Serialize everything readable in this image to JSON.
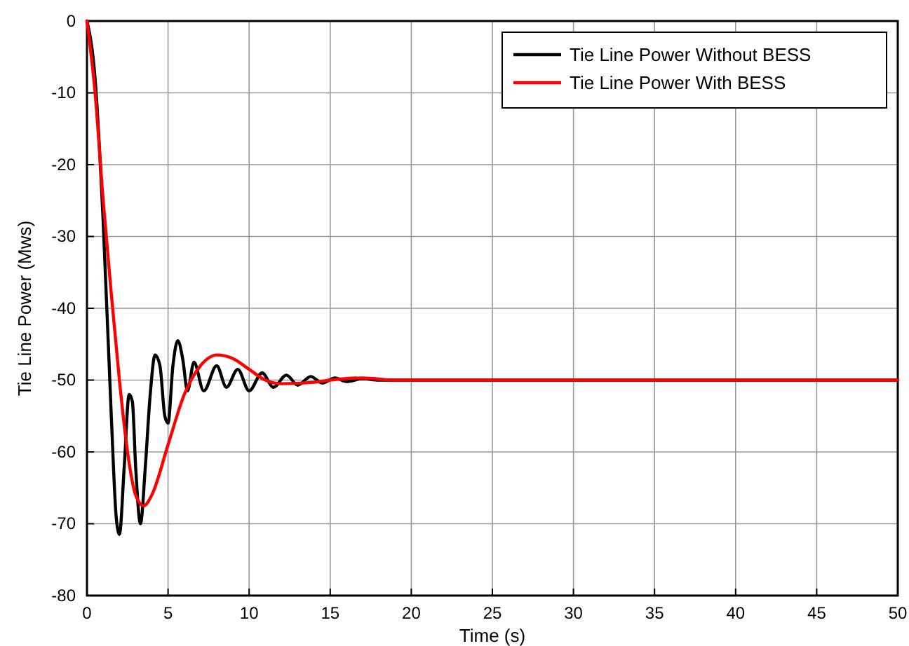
{
  "chart_data": {
    "type": "line",
    "xlabel": "Time (s)",
    "ylabel": "Tie Line Power (Mws)",
    "xlim": [
      0,
      50
    ],
    "ylim": [
      -80,
      0
    ],
    "xticks": [
      0,
      5,
      10,
      15,
      20,
      25,
      30,
      35,
      40,
      45,
      50
    ],
    "yticks": [
      -80,
      -70,
      -60,
      -50,
      -40,
      -30,
      -20,
      -10,
      0
    ],
    "grid": true,
    "legend": "top right",
    "line_style": "solid",
    "marker": "none",
    "series": [
      {
        "name": "Tie Line Power Without BESS",
        "color": "#000000",
        "x": [
          0,
          0.5,
          1,
          1.5,
          1.8,
          2,
          2.3,
          2.6,
          2.8,
          3,
          3.3,
          3.6,
          3.9,
          4.2,
          4.5,
          4.8,
          5,
          5.3,
          5.6,
          5.9,
          6.2,
          6.6,
          7.2,
          8,
          8.6,
          9.3,
          10,
          10.8,
          11.5,
          12.3,
          13,
          13.8,
          14.5,
          15.3,
          16,
          17,
          18,
          50
        ],
        "values": [
          0,
          -8,
          -28,
          -55,
          -69,
          -71.5,
          -62,
          -52,
          -53,
          -62,
          -70,
          -62,
          -52,
          -46.5,
          -48,
          -55,
          -56,
          -48,
          -44.5,
          -47,
          -51.5,
          -47.5,
          -51.5,
          -48,
          -51,
          -48.5,
          -51.5,
          -49,
          -51,
          -49.3,
          -50.7,
          -49.5,
          -50.4,
          -49.7,
          -50.2,
          -49.8,
          -50,
          -50
        ]
      },
      {
        "name": "Tie Line Power With BESS",
        "color": "#ff0000",
        "x": [
          0,
          0.5,
          1,
          1.5,
          2,
          2.5,
          3,
          3.5,
          4,
          5,
          6,
          7,
          8,
          9,
          10,
          11,
          12,
          14,
          15,
          17,
          19,
          25,
          50
        ],
        "values": [
          0,
          -10,
          -25,
          -38,
          -50,
          -60,
          -66,
          -67.5,
          -66,
          -59,
          -52,
          -48,
          -46.5,
          -47,
          -48.5,
          -50,
          -50.5,
          -50.3,
          -50,
          -49.7,
          -50,
          -50,
          -50
        ]
      }
    ]
  }
}
